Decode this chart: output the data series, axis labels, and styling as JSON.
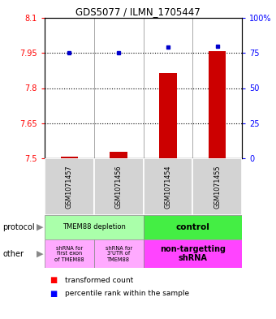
{
  "title": "GDS5077 / ILMN_1705447",
  "samples": [
    "GSM1071457",
    "GSM1071456",
    "GSM1071454",
    "GSM1071455"
  ],
  "red_values": [
    7.508,
    7.528,
    7.865,
    7.958
  ],
  "blue_values": [
    75,
    75,
    79,
    80
  ],
  "ylim_left": [
    7.5,
    8.1
  ],
  "ylim_right": [
    0,
    100
  ],
  "yticks_left": [
    7.5,
    7.65,
    7.8,
    7.95,
    8.1
  ],
  "yticks_right": [
    0,
    25,
    50,
    75,
    100
  ],
  "ytick_labels_left": [
    "7.5",
    "7.65",
    "7.8",
    "7.95",
    "8.1"
  ],
  "ytick_labels_right": [
    "0",
    "25",
    "50",
    "75",
    "100%"
  ],
  "dotted_lines": [
    7.65,
    7.8,
    7.95
  ],
  "bar_color": "#CC0000",
  "dot_color": "#0000CC",
  "bg_color": "#D3D3D3",
  "protocol_depletion_color": "#AAFFAA",
  "protocol_control_color": "#44EE44",
  "other_light_color": "#FFAAFF",
  "other_dark_color": "#FF44FF"
}
